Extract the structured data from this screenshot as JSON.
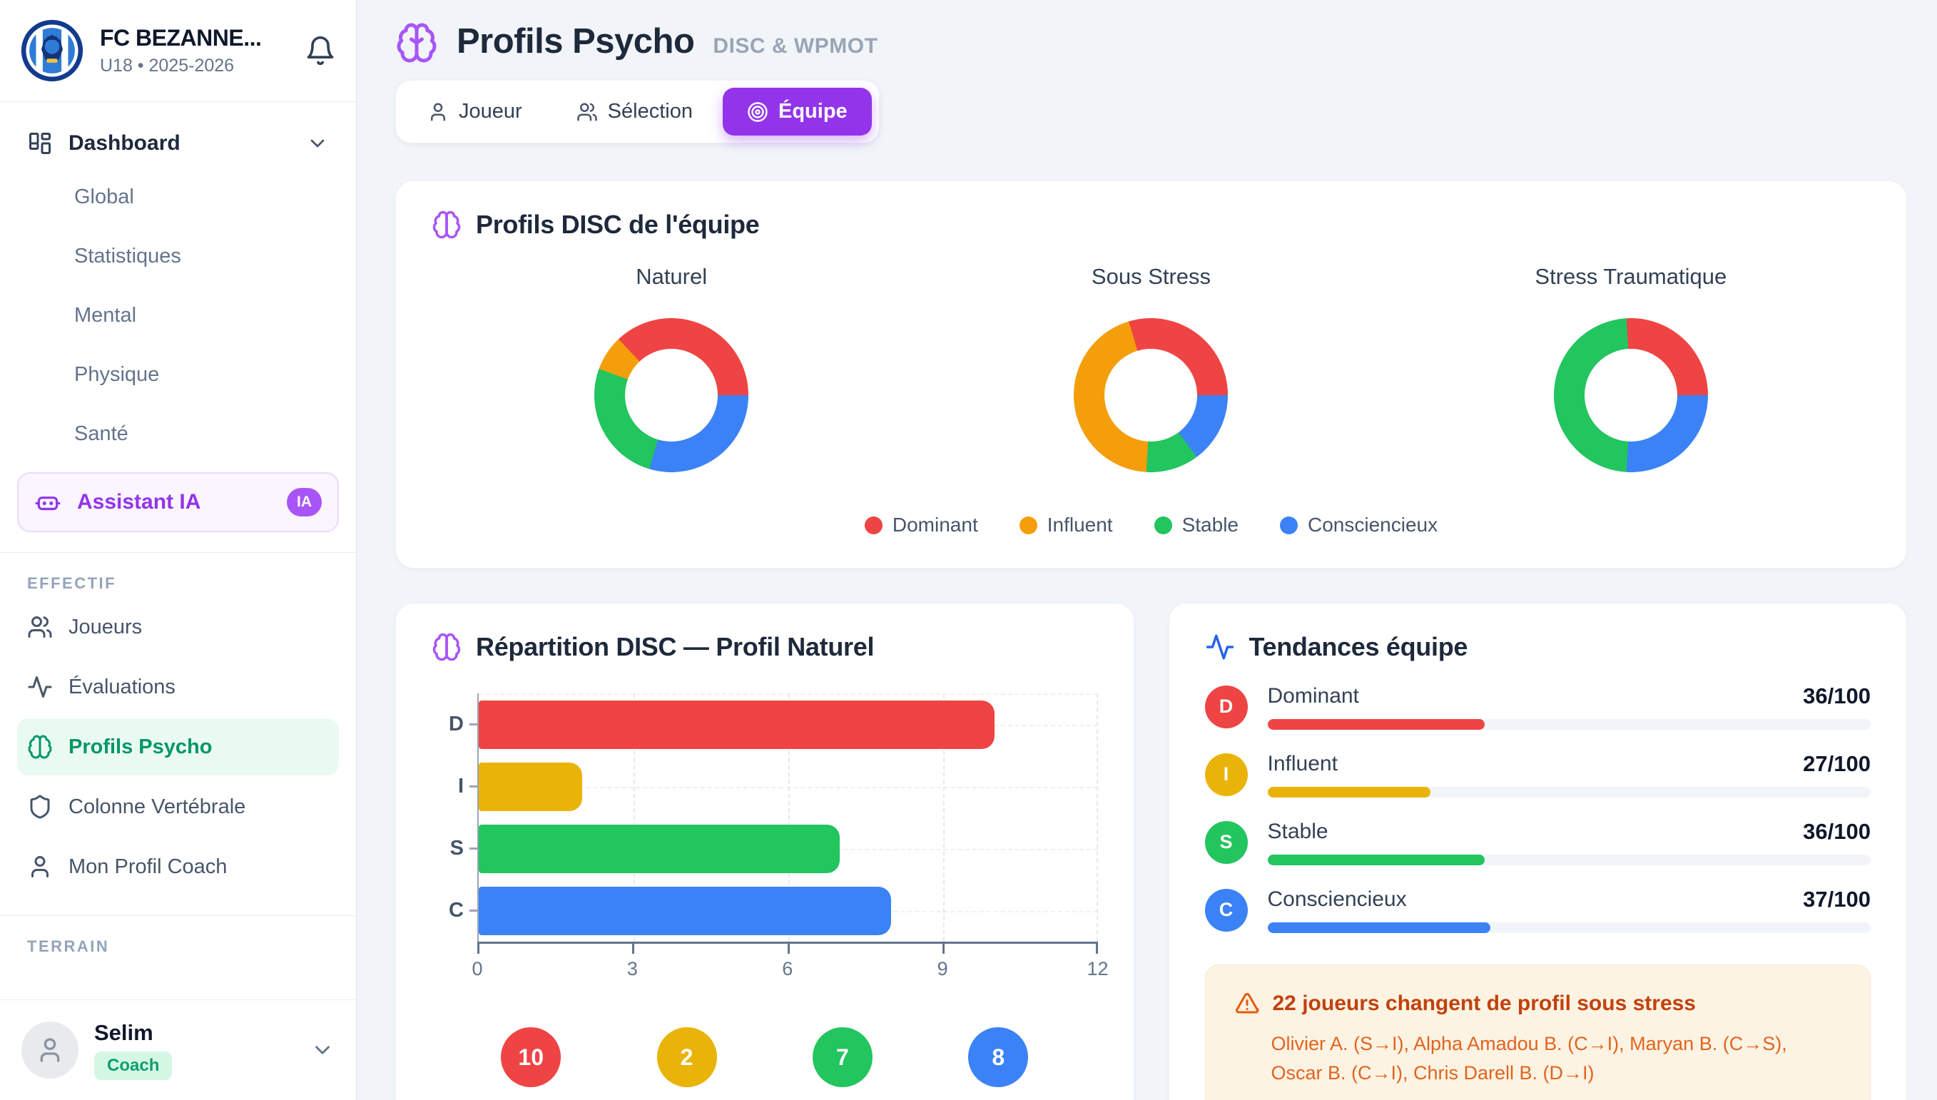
{
  "sidebar": {
    "club_name": "FC BEZANNE...",
    "club_season": "U18 • 2025-2026",
    "dashboard_label": "Dashboard",
    "sub_items": {
      "global": "Global",
      "statistiques": "Statistiques",
      "mental": "Mental",
      "physique": "Physique",
      "sante": "Santé"
    },
    "assistant_label": "Assistant IA",
    "assistant_badge": "IA",
    "effectif_label": "EFFECTIF",
    "effectif_items": {
      "joueurs": "Joueurs",
      "evaluations": "Évaluations",
      "profils_psycho": "Profils Psycho",
      "colonne": "Colonne Vertébrale",
      "mon_profil": "Mon Profil Coach"
    },
    "terrain_label": "TERRAIN",
    "user": {
      "name": "Selim",
      "role": "Coach"
    }
  },
  "header": {
    "title": "Profils Psycho",
    "subtitle": "DISC & WPMOT"
  },
  "tabs": {
    "joueur": "Joueur",
    "selection": "Sélection",
    "equipe": "Équipe",
    "active": "Équipe"
  },
  "palette": [
    "#ef4444",
    "#f59e0b",
    "#22c55e",
    "#3b82f6"
  ],
  "disc_card": {
    "title": "Profils DISC de l'équipe"
  },
  "repartition_card": {
    "title": "Répartition DISC — Profil Naturel"
  },
  "trends_card": {
    "title": "Tendances équipe"
  },
  "chart_data": [
    {
      "type": "pie",
      "shape": "donut",
      "title": "Naturel",
      "labels": [
        "Dominant",
        "Influent",
        "Stable",
        "Consciencieux"
      ],
      "values": [
        10,
        2,
        7,
        8
      ],
      "colors": [
        "#ef4444",
        "#f59e0b",
        "#22c55e",
        "#3b82f6"
      ],
      "legend_position": "bottom-shared"
    },
    {
      "type": "pie",
      "shape": "donut",
      "title": "Sous Stress",
      "labels": [
        "Dominant",
        "Influent",
        "Stable",
        "Consciencieux"
      ],
      "values": [
        8,
        12,
        3,
        4
      ],
      "colors": [
        "#ef4444",
        "#f59e0b",
        "#22c55e",
        "#3b82f6"
      ],
      "legend_position": "bottom-shared"
    },
    {
      "type": "pie",
      "shape": "donut",
      "title": "Stress Traumatique",
      "labels": [
        "Dominant",
        "Influent",
        "Stable",
        "Consciencieux"
      ],
      "values": [
        7,
        0,
        13,
        7
      ],
      "colors": [
        "#ef4444",
        "#f59e0b",
        "#22c55e",
        "#3b82f6"
      ],
      "legend_position": "bottom-shared"
    },
    {
      "type": "bar",
      "orientation": "horizontal",
      "title": "Répartition DISC — Profil Naturel",
      "categories": [
        "D",
        "I",
        "S",
        "C"
      ],
      "values": [
        10,
        2,
        7,
        8
      ],
      "colors": [
        "#ef4444",
        "#eab308",
        "#22c55e",
        "#3b82f6"
      ],
      "xlim": [
        0,
        12
      ],
      "xticks": [
        0,
        3,
        6,
        9,
        12
      ],
      "grid": "dashed",
      "value_badges": [
        10,
        2,
        7,
        8
      ]
    },
    {
      "type": "bar",
      "subtype": "progress",
      "title": "Tendances équipe",
      "rows": [
        {
          "badge": "D",
          "label": "Dominant",
          "value": 36,
          "max": 100,
          "display": "36/100",
          "color": "#ef4444"
        },
        {
          "badge": "I",
          "label": "Influent",
          "value": 27,
          "max": 100,
          "display": "27/100",
          "color": "#eab308"
        },
        {
          "badge": "S",
          "label": "Stable",
          "value": 36,
          "max": 100,
          "display": "36/100",
          "color": "#22c55e"
        },
        {
          "badge": "C",
          "label": "Consciencieux",
          "value": 37,
          "max": 100,
          "display": "37/100",
          "color": "#3b82f6"
        }
      ]
    }
  ],
  "warning": {
    "title": "22 joueurs changent de profil sous stress",
    "body": "Olivier A. (S→I), Alpha Amadou B. (C→I), Maryan B. (C→S), Oscar B. (C→I), Chris Darell B. (D→I)"
  },
  "icons": {
    "club-logo": "circular-crest",
    "bell-icon": "notifications",
    "dashboard-icon": "layout-grid",
    "robot-icon": "ai-assistant",
    "users-icon": "players",
    "activity-icon": "pulse",
    "brain-icon": "psychology",
    "shield-icon": "spine",
    "user-icon": "profile",
    "target-icon": "team",
    "chevron-down-icon": "expand",
    "warning-icon": "alert-triangle"
  }
}
